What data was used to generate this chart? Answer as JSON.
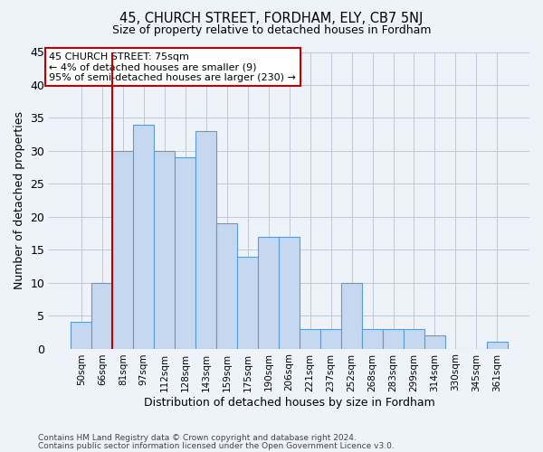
{
  "title1": "45, CHURCH STREET, FORDHAM, ELY, CB7 5NJ",
  "title2": "Size of property relative to detached houses in Fordham",
  "xlabel": "Distribution of detached houses by size in Fordham",
  "ylabel": "Number of detached properties",
  "categories": [
    "50sqm",
    "66sqm",
    "81sqm",
    "97sqm",
    "112sqm",
    "128sqm",
    "143sqm",
    "159sqm",
    "175sqm",
    "190sqm",
    "206sqm",
    "221sqm",
    "237sqm",
    "252sqm",
    "268sqm",
    "283sqm",
    "299sqm",
    "314sqm",
    "330sqm",
    "345sqm",
    "361sqm"
  ],
  "values": [
    4,
    10,
    30,
    34,
    30,
    29,
    33,
    19,
    14,
    17,
    17,
    3,
    3,
    10,
    3,
    3,
    3,
    2,
    0,
    0,
    1
  ],
  "bar_color": "#c5d8f0",
  "bar_edge_color": "#5b9bd5",
  "vline_color": "#c00000",
  "annotation_title": "45 CHURCH STREET: 75sqm",
  "annotation_line1": "← 4% of detached houses are smaller (9)",
  "annotation_line2": "95% of semi-detached houses are larger (230) →",
  "annotation_box_color": "#ffffff",
  "annotation_box_edge": "#c00000",
  "ylim": [
    0,
    45
  ],
  "yticks": [
    0,
    5,
    10,
    15,
    20,
    25,
    30,
    35,
    40,
    45
  ],
  "footer1": "Contains HM Land Registry data © Crown copyright and database right 2024.",
  "footer2": "Contains public sector information licensed under the Open Government Licence v3.0.",
  "bg_color": "#eef2f9"
}
